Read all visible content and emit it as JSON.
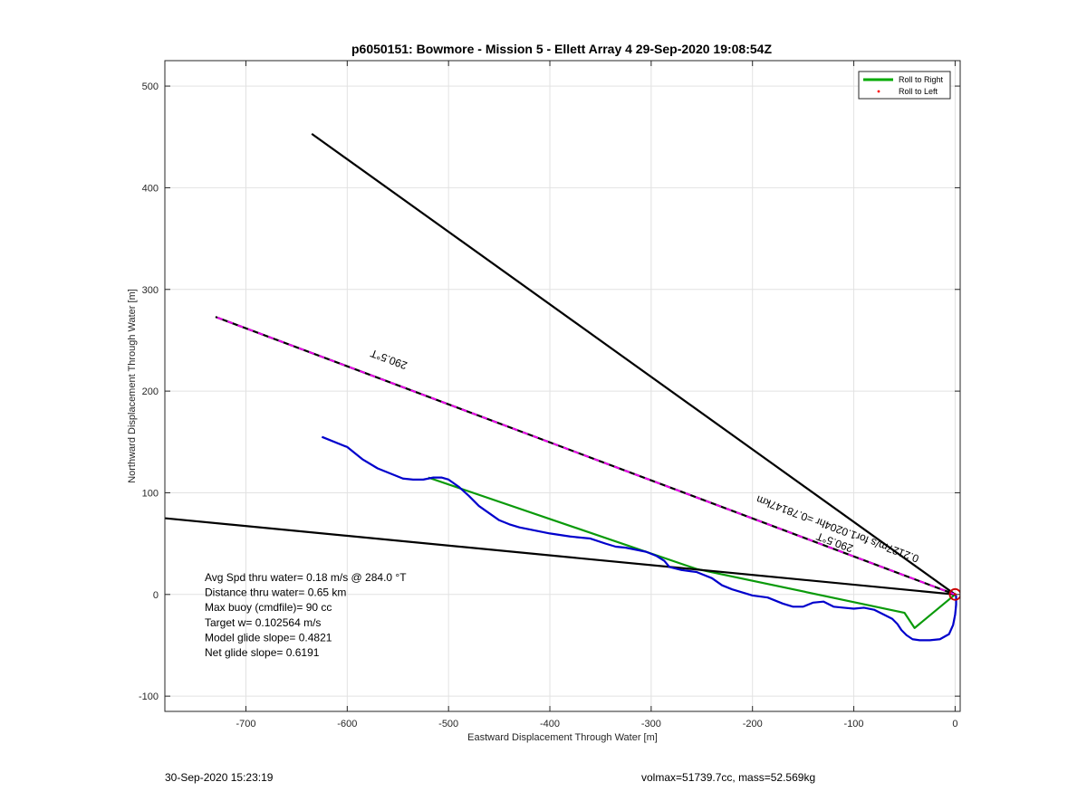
{
  "chart_data": {
    "type": "line",
    "title": "p6050151: Bowmore - Mission 5 - Ellett Array 4 29-Sep-2020 19:08:54Z",
    "xlabel": "Eastward Displacement Through Water [m]",
    "ylabel": "Northward Displacement Through Water [m]",
    "xlim": [
      -780,
      5
    ],
    "ylim": [
      -115,
      525
    ],
    "xticks": [
      -700,
      -600,
      -500,
      -400,
      -300,
      -200,
      -100,
      0
    ],
    "yticks": [
      -100,
      0,
      100,
      200,
      300,
      400,
      500
    ],
    "grid": true,
    "legend": {
      "position": "top-right",
      "entries": [
        {
          "label": "Roll to Right",
          "color": "#00aa00",
          "style": "line"
        },
        {
          "label": "Roll to Left",
          "color": "#ff0000",
          "style": "marker"
        }
      ]
    },
    "series": [
      {
        "name": "Roll to Right",
        "color": "#0a9a0a",
        "x": [
          -520,
          -255,
          -50,
          -40,
          0
        ],
        "y": [
          115,
          25,
          -18,
          -33,
          0
        ]
      },
      {
        "color": "#0000cc",
        "x": [
          -625,
          -600,
          -585,
          -570,
          -555,
          -545,
          -535,
          -525,
          -515,
          -507,
          -500,
          -490,
          -480,
          -470,
          -460,
          -450,
          -440,
          -430,
          -420,
          -400,
          -380,
          -360,
          -345,
          -335,
          -325,
          -315,
          -305,
          -295,
          -287,
          -282,
          -270,
          -255,
          -240,
          -230,
          -220,
          -200,
          -185,
          -170,
          -160,
          -150,
          -140,
          -130,
          -120,
          -110,
          -100,
          -90,
          -80,
          -70,
          -62,
          -57,
          -53,
          -48,
          -42,
          -35,
          -25,
          -15,
          -6,
          -2,
          0,
          1,
          1,
          0
        ],
        "y": [
          155,
          145,
          133,
          124,
          118,
          114,
          113,
          113,
          115,
          115,
          113,
          106,
          97,
          87,
          80,
          73,
          69,
          66,
          64,
          60,
          57,
          55,
          50,
          47,
          46,
          44,
          42,
          38,
          33,
          27,
          24,
          22,
          16,
          9,
          5,
          -1,
          -3,
          -9,
          -12,
          -12,
          -8,
          -7,
          -12,
          -13,
          -14,
          -13,
          -15,
          -20,
          -24,
          -29,
          -35,
          -40,
          -44,
          -45,
          -45,
          -44,
          -39,
          -30,
          -20,
          -10,
          -2,
          0
        ]
      },
      {
        "color": "#000000",
        "x": [
          0,
          -635
        ],
        "y": [
          0,
          453
        ]
      },
      {
        "color": "#000000",
        "x": [
          0,
          -780
        ],
        "y": [
          0,
          75
        ]
      },
      {
        "color": "#000000",
        "dashed_with": "#ee00ee",
        "x": [
          0,
          -730
        ],
        "y": [
          0,
          273
        ]
      }
    ],
    "markers": [
      {
        "shape": "circle",
        "color": "#cc0000",
        "x": 0,
        "y": 0
      }
    ],
    "annotations": [
      {
        "text": "290.5°T",
        "x": -540,
        "y": 228,
        "angle": 200.5
      },
      {
        "text": "290.5°T",
        "x": -100,
        "y": 48,
        "angle": 200.5
      },
      {
        "text": "0.2127m/s for1.0204hr =0.78147km",
        "x": -35,
        "y": 38,
        "angle": 200.5
      }
    ],
    "stats_text": [
      "Avg Spd thru water=  0.18 m/s @ 284.0 °T",
      "Distance thru water=  0.65 km",
      "Max buoy (cmdfile)= 90 cc",
      "Target w= 0.102564 m/s",
      "Model glide slope= 0.4821",
      "Net glide slope= 0.6191"
    ]
  },
  "footer": {
    "left": "30-Sep-2020 15:23:19",
    "right": "volmax=51739.7cc, mass=52.569kg"
  }
}
